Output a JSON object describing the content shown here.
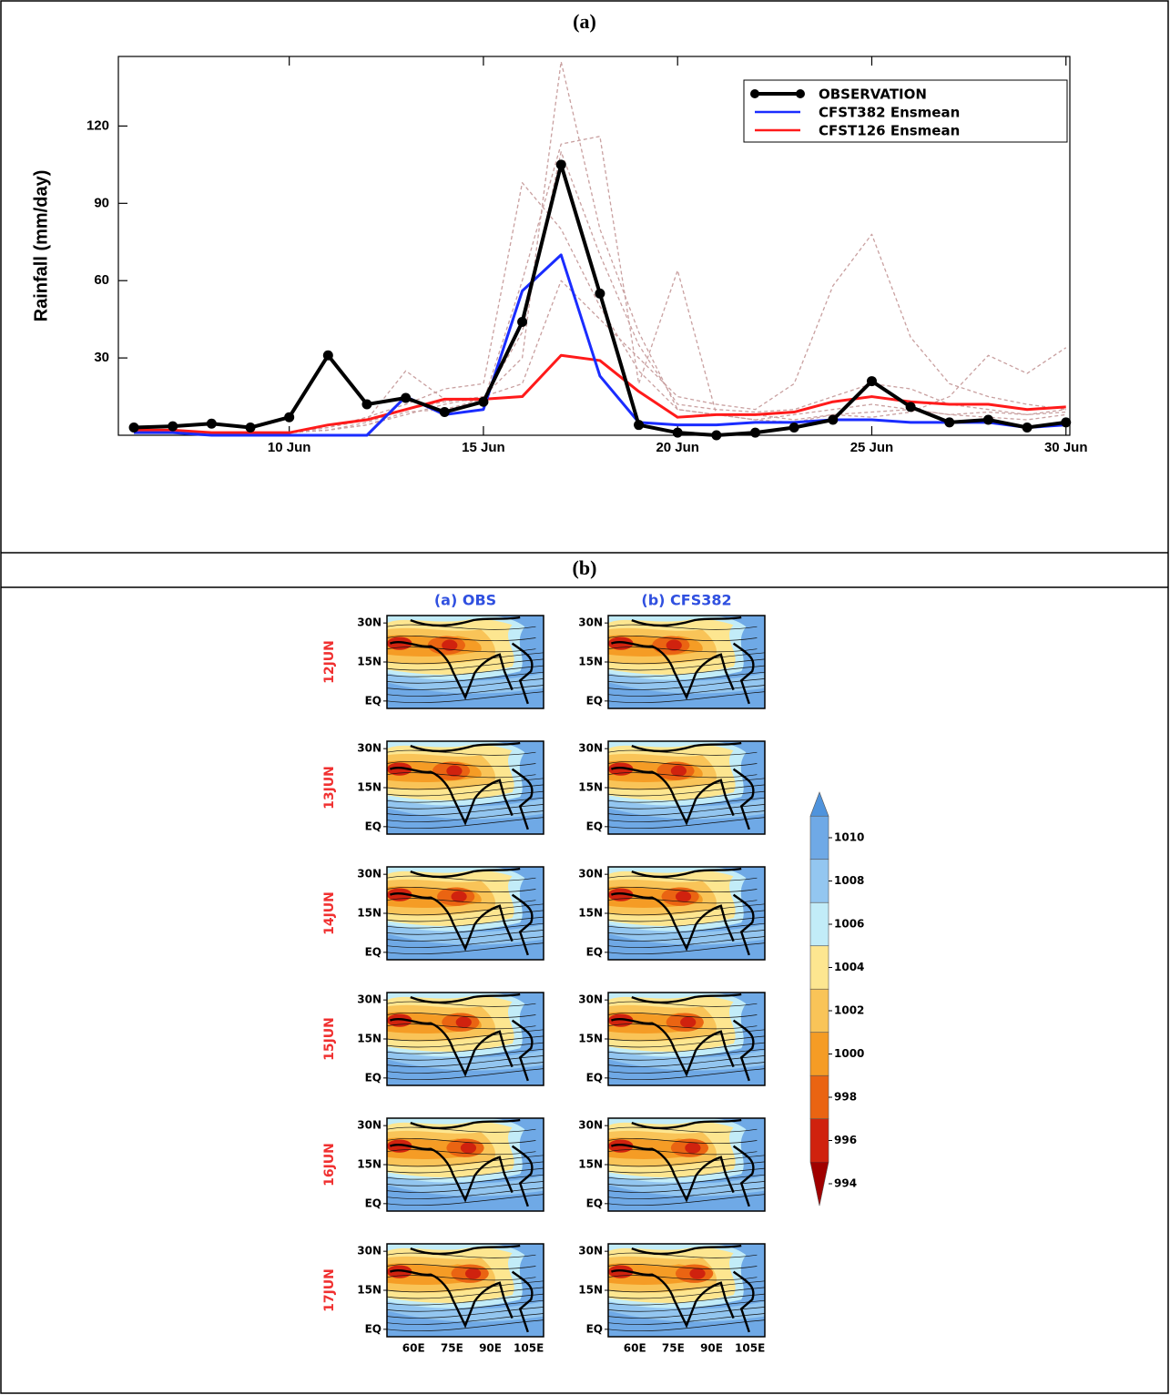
{
  "panel_labels": [
    "(a)",
    "(b)"
  ],
  "chart_data": {
    "type": "line",
    "y_label": "Rainfall (mm/day)",
    "x": [
      6,
      7,
      8,
      9,
      10,
      11,
      12,
      13,
      14,
      15,
      16,
      17,
      18,
      19,
      20,
      21,
      22,
      23,
      24,
      25,
      26,
      27,
      28,
      29,
      30
    ],
    "xlim": [
      5.6,
      30.1
    ],
    "xticks": [
      {
        "value": 10,
        "label": "10 Jun"
      },
      {
        "value": 15,
        "label": "15 Jun"
      },
      {
        "value": 20,
        "label": "20 Jun"
      },
      {
        "value": 25,
        "label": "25 Jun"
      },
      {
        "value": 30,
        "label": "30 Jun"
      }
    ],
    "ylim": [
      0,
      147
    ],
    "yticks": [
      30,
      60,
      90,
      120
    ],
    "legend": "upper right",
    "series": [
      {
        "color": "#c9a0a0",
        "linestyle": "dashed",
        "values": [
          1,
          1,
          1,
          1,
          1,
          2,
          4,
          8,
          12,
          15,
          30,
          145,
          80,
          40,
          10,
          8,
          6,
          8,
          10,
          12,
          10,
          8,
          9,
          8,
          10
        ]
      },
      {
        "color": "#c9a0a0",
        "linestyle": "dashed",
        "values": [
          1,
          1,
          1,
          1,
          1,
          2,
          5,
          10,
          13,
          15,
          20,
          60,
          45,
          30,
          15,
          12,
          10,
          20,
          58,
          78,
          38,
          20,
          15,
          12,
          10
        ]
      },
      {
        "color": "#c9a0a0",
        "linestyle": "dashed",
        "values": [
          1,
          1,
          1,
          1,
          1,
          3,
          6,
          25,
          14,
          13,
          60,
          113,
          116,
          20,
          64,
          8,
          6,
          5,
          8,
          7,
          9,
          15,
          31,
          24,
          34
        ]
      },
      {
        "color": "#c9a0a0",
        "linestyle": "dashed",
        "values": [
          2,
          2,
          1,
          1,
          1,
          3,
          7,
          12,
          18,
          20,
          98,
          80,
          50,
          25,
          10,
          8,
          8,
          6,
          8,
          9,
          10,
          8,
          7,
          6,
          8
        ]
      },
      {
        "color": "#c9a0a0",
        "linestyle": "dashed",
        "values": [
          1,
          1,
          1,
          1,
          1,
          2,
          4,
          9,
          10,
          14,
          40,
          110,
          70,
          35,
          12,
          10,
          9,
          10,
          15,
          20,
          18,
          12,
          10,
          8,
          9
        ]
      },
      {
        "name": "CFST126 Ensmean",
        "color": "#ff1a1a",
        "values": [
          2,
          2,
          1,
          1,
          1,
          4,
          6,
          10,
          14,
          14,
          15,
          31,
          29,
          17,
          7,
          8,
          8,
          9,
          13,
          15,
          13,
          12,
          12,
          10,
          11
        ]
      },
      {
        "name": "CFST382 Ensmean",
        "color": "#1a2cff",
        "values": [
          1,
          1,
          0,
          0,
          0,
          0,
          0,
          15,
          8,
          10,
          56,
          70,
          23,
          5,
          4,
          4,
          5,
          5,
          6,
          6,
          5,
          5,
          5,
          3,
          4
        ]
      },
      {
        "name": "OBSERVATION",
        "color": "#000000",
        "marker": "circle",
        "values": [
          3,
          3.5,
          4.5,
          3,
          7,
          31,
          12,
          14.5,
          9,
          13,
          44,
          105,
          55,
          4,
          1,
          0,
          1,
          3,
          6,
          21,
          11,
          5,
          6,
          3,
          5
        ]
      }
    ]
  },
  "figure_b": {
    "columns": [
      "(a)  OBS",
      "(b)  CFS382"
    ],
    "rows": [
      "12JUN",
      "13JUN",
      "14JUN",
      "15JUN",
      "16JUN",
      "17JUN"
    ],
    "lat_labels": [
      "30N",
      "15N",
      "EQ"
    ],
    "lon_labels": [
      "60E",
      "75E",
      "90E",
      "105E"
    ],
    "colorbar": {
      "ticks": [
        1010,
        1008,
        1006,
        1004,
        1002,
        1000,
        998,
        996,
        994
      ],
      "colors": [
        "#4f93dc",
        "#6fa9e6",
        "#93c6f0",
        "#c2ecf8",
        "#fde690",
        "#f9c458",
        "#f59c25",
        "#ea6412",
        "#d0220e",
        "#a00000"
      ]
    }
  }
}
